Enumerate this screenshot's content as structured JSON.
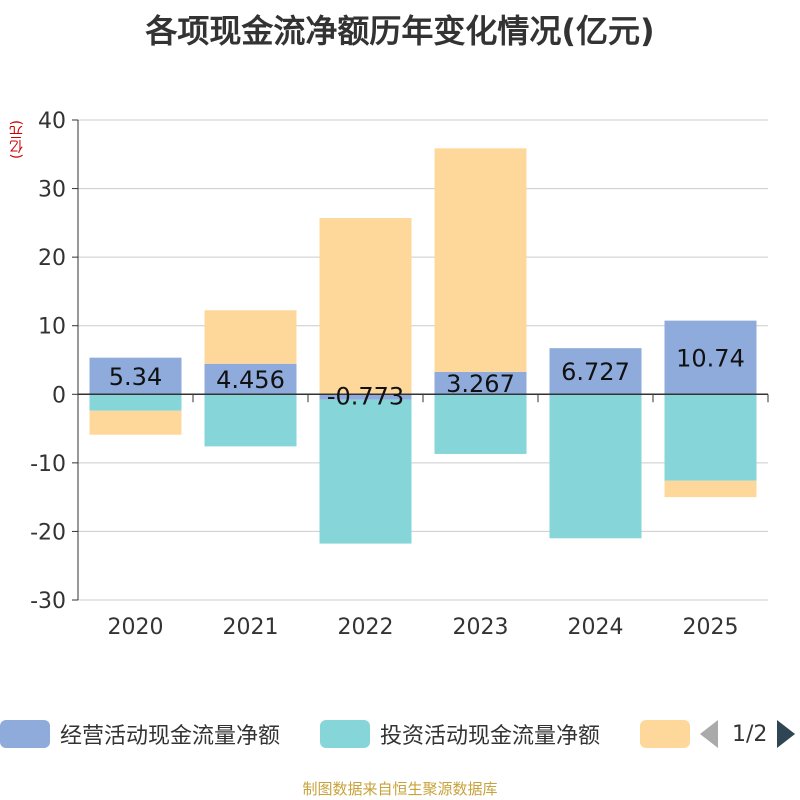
{
  "chart_data": {
    "type": "bar",
    "title": "各项现金流净额历年变化情况(亿元)",
    "ylabel": "(亿元)",
    "xlabel": "",
    "ylim": [
      -30,
      40
    ],
    "yticks": [
      -30,
      -20,
      -10,
      0,
      10,
      20,
      30,
      40
    ],
    "categories": [
      "2020",
      "2021",
      "2022",
      "2023",
      "2024",
      "2025"
    ],
    "series": [
      {
        "name": "经营活动现金流量净额",
        "color": "#8eabdb",
        "values": [
          5.34,
          4.456,
          -0.773,
          3.267,
          6.727,
          10.74
        ],
        "labels": [
          "5.34",
          "4.456",
          "-0.773",
          "3.267",
          "6.727",
          "10.74"
        ]
      },
      {
        "name": "投资活动现金流量净额",
        "color": "#86d5d8",
        "values": [
          -2.4,
          -7.6,
          -21.0,
          -8.7,
          -21.0,
          -12.6
        ]
      },
      {
        "name": "",
        "color": "#fdd89a",
        "values": [
          -3.5,
          7.8,
          25.7,
          32.6,
          0,
          -2.4
        ]
      }
    ],
    "legend": {
      "placement": "bottom",
      "page": "1/2"
    }
  },
  "source": "制图数据来自恒生聚源数据库"
}
